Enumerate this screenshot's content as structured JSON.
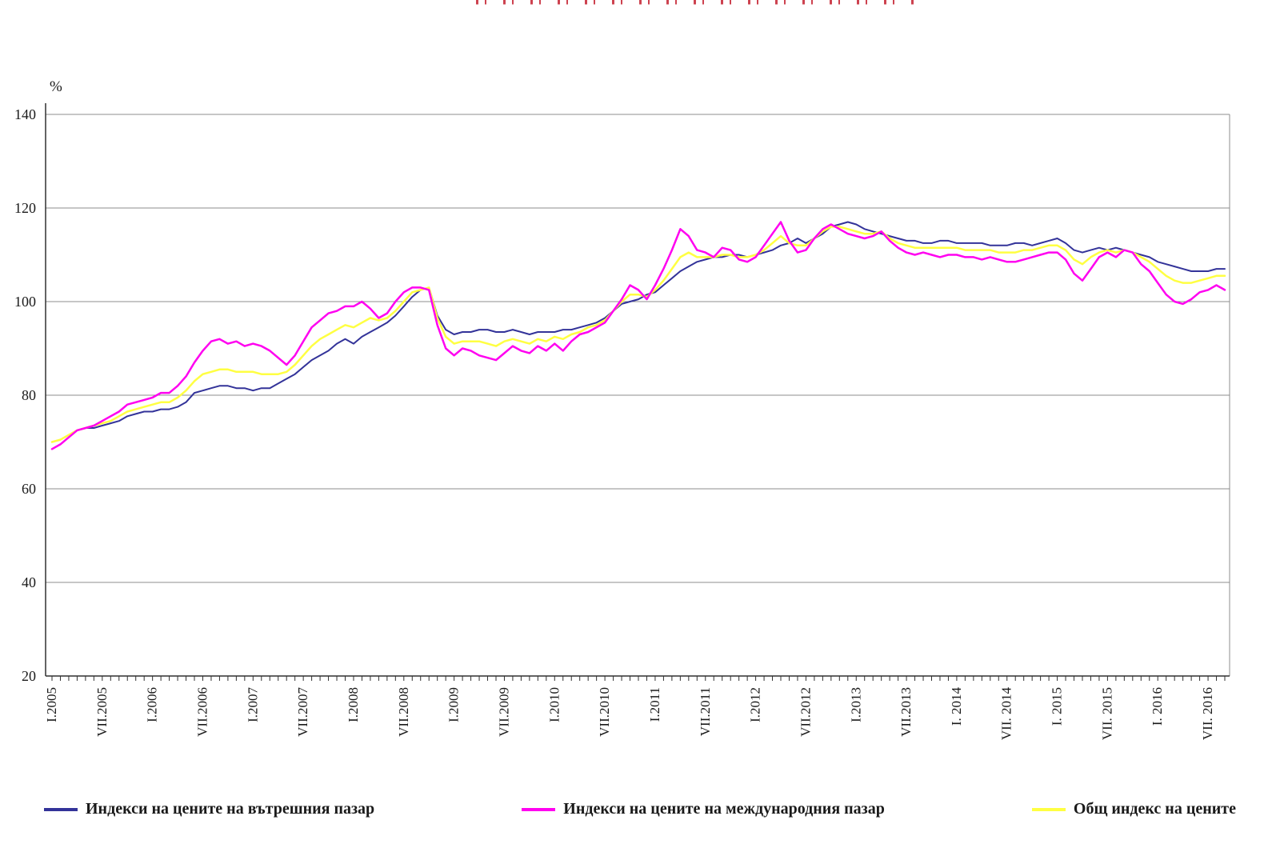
{
  "chart_data": {
    "type": "line",
    "title": "",
    "xlabel": "",
    "ylabel": "%",
    "ylim": [
      20,
      140
    ],
    "yticks": [
      20,
      40,
      60,
      80,
      100,
      120,
      140
    ],
    "grid": "horizontal",
    "legend_position": "bottom",
    "n_points": 141,
    "x_tick_step": 6,
    "x_tick_labels": [
      "I.2005",
      "VII.2005",
      "I.2006",
      "VII.2006",
      "I.2007",
      "VII.2007",
      "I.2008",
      "VII.2008",
      "I.2009",
      "VII.2009",
      "I.2010",
      "VII.2010",
      "I.2011",
      "VII.2011",
      "I.2012",
      "VII.2012",
      "I.2013",
      "VII.2013",
      "I. 2014",
      "VII. 2014",
      "I. 2015",
      "VII. 2015",
      "I. 2016",
      "VII. 2016"
    ],
    "series": [
      {
        "name": "Индекси на цените на вътрешния пазар",
        "color": "#333399",
        "width": 2,
        "values": [
          70.0,
          70.5,
          71.5,
          72.5,
          73.0,
          73.0,
          73.5,
          74.0,
          74.5,
          75.5,
          76.0,
          76.5,
          76.5,
          77.0,
          77.0,
          77.5,
          78.5,
          80.5,
          81.0,
          81.5,
          82.0,
          82.0,
          81.5,
          81.5,
          81.0,
          81.5,
          81.5,
          82.5,
          83.5,
          84.5,
          86.0,
          87.5,
          88.5,
          89.5,
          91.0,
          92.0,
          91.0,
          92.5,
          93.5,
          94.5,
          95.5,
          97.0,
          99.0,
          101.0,
          102.5,
          103.0,
          97.0,
          94.0,
          93.0,
          93.5,
          93.5,
          94.0,
          94.0,
          93.5,
          93.5,
          94.0,
          93.5,
          93.0,
          93.5,
          93.5,
          93.5,
          94.0,
          94.0,
          94.5,
          95.0,
          95.5,
          96.5,
          98.0,
          99.5,
          100.0,
          100.5,
          101.5,
          102.0,
          103.5,
          105.0,
          106.5,
          107.5,
          108.5,
          109.0,
          109.5,
          109.5,
          110.0,
          110.0,
          109.5,
          110.0,
          110.5,
          111.0,
          112.0,
          112.5,
          113.5,
          112.5,
          113.5,
          114.5,
          116.0,
          116.5,
          117.0,
          116.5,
          115.5,
          115.0,
          114.5,
          114.0,
          113.5,
          113.0,
          113.0,
          112.5,
          112.5,
          113.0,
          113.0,
          112.5,
          112.5,
          112.5,
          112.5,
          112.0,
          112.0,
          112.0,
          112.5,
          112.5,
          112.0,
          112.5,
          113.0,
          113.5,
          112.5,
          111.0,
          110.5,
          111.0,
          111.5,
          111.0,
          111.5,
          111.0,
          110.5,
          110.0,
          109.5,
          108.5,
          108.0,
          107.5,
          107.0,
          106.5,
          106.5,
          106.5,
          107.0,
          107.0
        ]
      },
      {
        "name": "Индекси на цените на международния пазар",
        "color": "#ff00f0",
        "width": 2.5,
        "values": [
          68.5,
          69.5,
          71.0,
          72.5,
          73.0,
          73.5,
          74.5,
          75.5,
          76.5,
          78.0,
          78.5,
          79.0,
          79.5,
          80.5,
          80.5,
          82.0,
          84.0,
          87.0,
          89.5,
          91.5,
          92.0,
          91.0,
          91.5,
          90.5,
          91.0,
          90.5,
          89.5,
          88.0,
          86.5,
          88.5,
          91.5,
          94.5,
          96.0,
          97.5,
          98.0,
          99.0,
          99.0,
          100.0,
          98.5,
          96.5,
          97.5,
          100.0,
          102.0,
          103.0,
          103.0,
          102.5,
          95.0,
          90.0,
          88.5,
          90.0,
          89.5,
          88.5,
          88.0,
          87.5,
          89.0,
          90.5,
          89.5,
          89.0,
          90.5,
          89.5,
          91.0,
          89.5,
          91.5,
          93.0,
          93.5,
          94.5,
          95.5,
          98.0,
          100.5,
          103.5,
          102.5,
          100.5,
          103.5,
          107.0,
          111.0,
          115.5,
          114.0,
          111.0,
          110.5,
          109.5,
          111.5,
          111.0,
          109.0,
          108.5,
          109.5,
          112.0,
          114.5,
          117.0,
          113.0,
          110.5,
          111.0,
          113.5,
          115.5,
          116.5,
          115.5,
          114.5,
          114.0,
          113.5,
          114.0,
          115.0,
          113.0,
          111.5,
          110.5,
          110.0,
          110.5,
          110.0,
          109.5,
          110.0,
          110.0,
          109.5,
          109.5,
          109.0,
          109.5,
          109.0,
          108.5,
          108.5,
          109.0,
          109.5,
          110.0,
          110.5,
          110.5,
          109.0,
          106.0,
          104.5,
          107.0,
          109.5,
          110.5,
          109.5,
          111.0,
          110.5,
          108.0,
          106.5,
          104.0,
          101.5,
          100.0,
          99.5,
          100.5,
          102.0,
          102.5,
          103.5,
          102.5
        ]
      },
      {
        "name": "Общ индекс на цените",
        "color": "#ffff42",
        "width": 2.5,
        "values": [
          70.0,
          70.5,
          71.5,
          72.5,
          73.0,
          73.5,
          74.0,
          74.5,
          75.5,
          76.5,
          77.0,
          77.5,
          78.0,
          78.5,
          78.5,
          79.5,
          81.0,
          83.0,
          84.5,
          85.0,
          85.5,
          85.5,
          85.0,
          85.0,
          85.0,
          84.5,
          84.5,
          84.5,
          85.0,
          86.5,
          88.5,
          90.5,
          92.0,
          93.0,
          94.0,
          95.0,
          94.5,
          95.5,
          96.5,
          96.0,
          96.5,
          98.0,
          100.0,
          102.0,
          102.5,
          103.0,
          96.5,
          92.5,
          91.0,
          91.5,
          91.5,
          91.5,
          91.0,
          90.5,
          91.5,
          92.0,
          91.5,
          91.0,
          92.0,
          91.5,
          92.5,
          92.0,
          93.0,
          93.5,
          94.5,
          95.0,
          96.0,
          98.0,
          100.0,
          101.5,
          101.5,
          101.0,
          102.5,
          104.5,
          107.0,
          109.5,
          110.5,
          109.5,
          109.5,
          109.5,
          110.0,
          110.0,
          109.5,
          109.5,
          110.0,
          111.0,
          112.5,
          114.0,
          112.5,
          112.0,
          112.0,
          113.5,
          115.0,
          116.0,
          116.0,
          115.5,
          115.0,
          114.5,
          114.5,
          115.0,
          113.5,
          112.5,
          112.0,
          111.5,
          111.5,
          111.5,
          111.5,
          111.5,
          111.5,
          111.0,
          111.0,
          111.0,
          111.0,
          110.5,
          110.5,
          110.5,
          111.0,
          111.0,
          111.5,
          112.0,
          112.0,
          111.0,
          109.0,
          108.0,
          109.5,
          110.5,
          111.0,
          110.5,
          111.0,
          110.5,
          109.5,
          108.5,
          107.0,
          105.5,
          104.5,
          104.0,
          104.0,
          104.5,
          105.0,
          105.5,
          105.5
        ]
      }
    ]
  }
}
